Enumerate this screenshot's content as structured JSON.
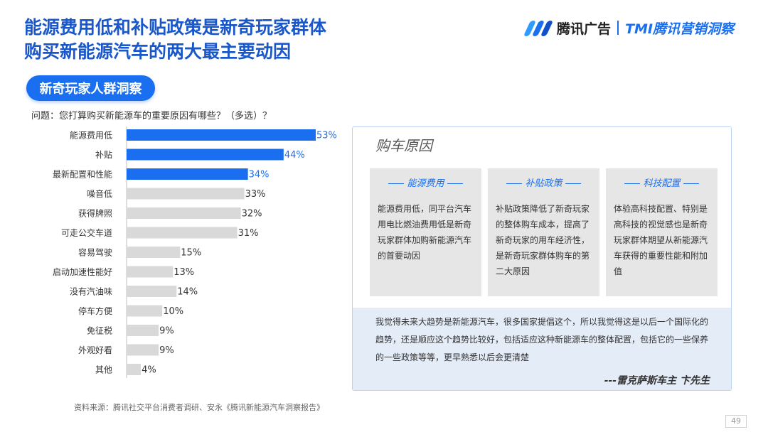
{
  "header": {
    "title_line1": "能源费用低和补贴政策是新奇玩家群体",
    "title_line2": "购买新能源汽车的两大最主要动因",
    "brand_name": "腾讯广告",
    "brand_sub": "TMI腾讯营销洞察",
    "brand_colors": [
      "#2e9bff",
      "#1a6ff0",
      "#0f4fc8"
    ]
  },
  "segment_pill": "新奇玩家人群洞察",
  "question": "问题：您打算购买新能源车的重要原因有哪些？（多选）？",
  "chart_data": {
    "type": "bar",
    "orientation": "horizontal",
    "categories": [
      "能源费用低",
      "补贴",
      "最新配置和性能",
      "噪音低",
      "获得牌照",
      "可走公交车道",
      "容易驾驶",
      "启动加速性能好",
      "没有汽油味",
      "停车方便",
      "免征税",
      "外观好看",
      "其他"
    ],
    "values": [
      53,
      44,
      34,
      33,
      32,
      31,
      15,
      13,
      14,
      10,
      9,
      9,
      4
    ],
    "value_labels": [
      "53%",
      "44%",
      "34%",
      "33%",
      "32%",
      "31%",
      "15%",
      "13%",
      "14%",
      "10%",
      "9%",
      "9%",
      "4%"
    ],
    "highlight_count": 3,
    "highlight_color": "#1a6ff0",
    "base_color": "#d9d9d9",
    "xlim": [
      0,
      53
    ],
    "grid": false
  },
  "panel": {
    "title": "购车原因",
    "cards": [
      {
        "head": "能源费用",
        "body": "能源费用低，同平台汽车用电比燃油费用低是新奇玩家群体加购新能源汽车的首要动因"
      },
      {
        "head": "补贴政策",
        "body": "补贴政策降低了新奇玩家的整体购车成本，提高了新奇玩家的用车经济性，是新奇玩家群体购车的第二大原因"
      },
      {
        "head": "科技配置",
        "body": "体验高科技配置、特别是高科技的视觉感也是新奇玩家群体期望从新能源汽车获得的重要性能和附加值"
      }
    ],
    "quote": "我觉得未来大趋势是新能源汽车，很多国家提倡这个，所以我觉得这是以后一个国际化的趋势，还是顺应这个趋势比较好，包括适应这种新能源车的整体配置，包括它的一些保养的一些政策等等，更早熟悉以后会更清楚",
    "quote_author": "---雷克萨斯车主 卞先生"
  },
  "footer": {
    "source": "资料来源：腾讯社交平台消费者调研、安永《腾讯新能源汽车洞察报告》",
    "page_number": "49"
  }
}
